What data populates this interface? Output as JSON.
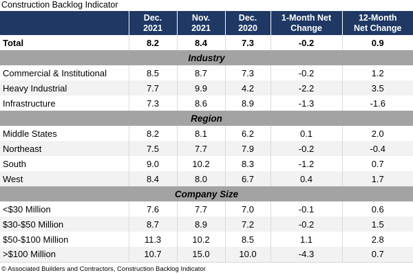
{
  "colors": {
    "header_bg": "#1f3864",
    "header_text": "#ffffff",
    "band_bg": "#a3a3a3",
    "row_alt": "#f2f2f2",
    "divider": "#d9d9d9"
  },
  "header": [
    {
      "line1": "",
      "line2": ""
    },
    {
      "line1": "Dec.",
      "line2": "2021"
    },
    {
      "line1": "Nov.",
      "line2": "2021"
    },
    {
      "line1": "Dec.",
      "line2": "2020"
    },
    {
      "line1": "1-Month Net",
      "line2": "Change"
    },
    {
      "line1": "12-Month",
      "line2": "Net Change"
    }
  ],
  "chart_data": {
    "type": "table",
    "title": "Construction Backlog Indicator",
    "columns": [
      "",
      "Dec. 2021",
      "Nov. 2021",
      "Dec. 2020",
      "1-Month Net Change",
      "12-Month Net Change"
    ],
    "total": {
      "label": "Total",
      "values": [
        "8.2",
        "8.4",
        "7.3",
        "-0.2",
        "0.9"
      ]
    },
    "sections": [
      {
        "name": "Industry",
        "rows": [
          {
            "label": "Commercial & Institutional",
            "values": [
              "8.5",
              "8.7",
              "7.3",
              "-0.2",
              "1.2"
            ]
          },
          {
            "label": "Heavy Industrial",
            "values": [
              "7.7",
              "9.9",
              "4.2",
              "-2.2",
              "3.5"
            ]
          },
          {
            "label": "Infrastructure",
            "values": [
              "7.3",
              "8.6",
              "8.9",
              "-1.3",
              "-1.6"
            ]
          }
        ]
      },
      {
        "name": "Region",
        "rows": [
          {
            "label": "Middle States",
            "values": [
              "8.2",
              "8.1",
              "6.2",
              "0.1",
              "2.0"
            ]
          },
          {
            "label": "Northeast",
            "values": [
              "7.5",
              "7.7",
              "7.9",
              "-0.2",
              "-0.4"
            ]
          },
          {
            "label": "South",
            "values": [
              "9.0",
              "10.2",
              "8.3",
              "-1.2",
              "0.7"
            ]
          },
          {
            "label": "West",
            "values": [
              "8.4",
              "8.0",
              "6.7",
              "0.4",
              "1.7"
            ]
          }
        ]
      },
      {
        "name": "Company Size",
        "rows": [
          {
            "label": "<$30 Million",
            "values": [
              "7.6",
              "7.7",
              "7.0",
              "-0.1",
              "0.6"
            ]
          },
          {
            "label": "$30-$50 Million",
            "values": [
              "8.7",
              "8.9",
              "7.2",
              "-0.2",
              "1.5"
            ]
          },
          {
            "label": "$50-$100 Million",
            "values": [
              "11.3",
              "10.2",
              "8.5",
              "1.1",
              "2.8"
            ]
          },
          {
            "label": ">$100 Million",
            "values": [
              "10.7",
              "15.0",
              "10.0",
              "-4.3",
              "0.7"
            ]
          }
        ]
      }
    ],
    "source": "© Associated Builders and Contractors, Construction Backlog Indicator"
  }
}
